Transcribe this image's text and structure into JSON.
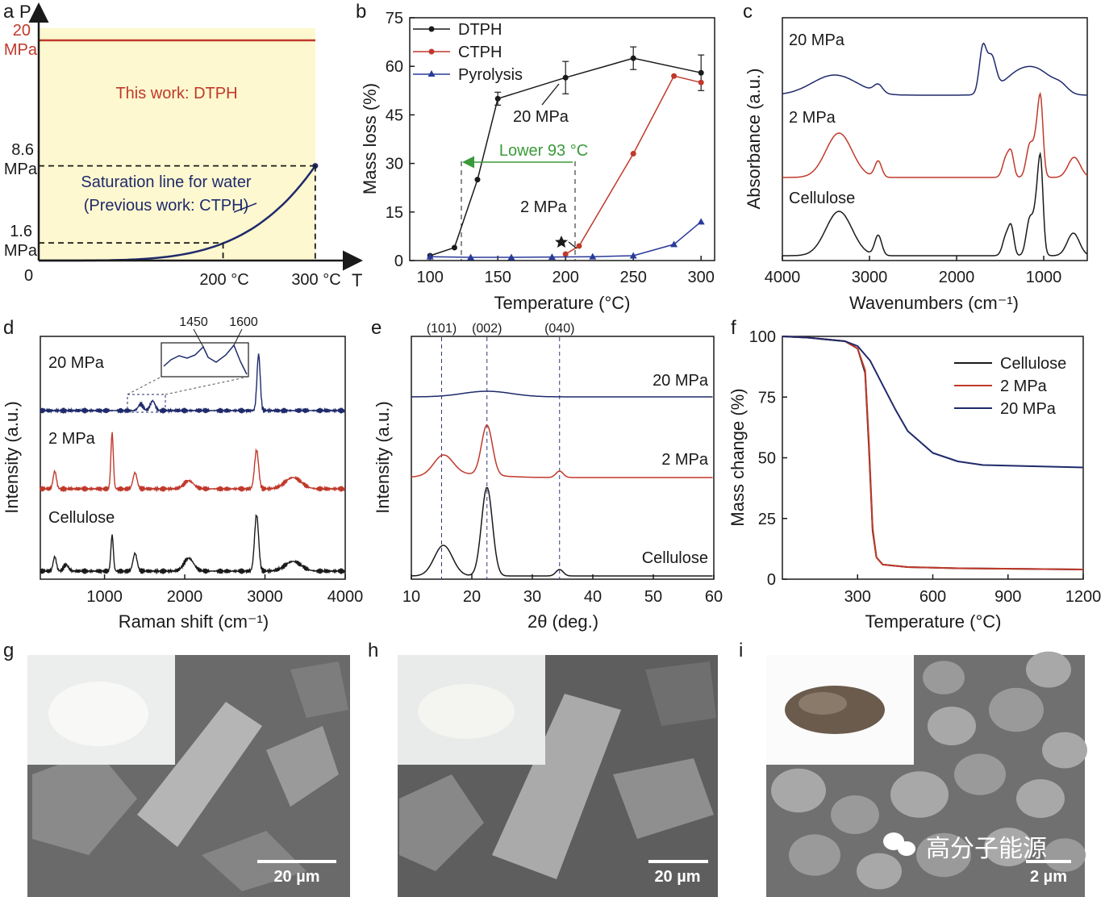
{
  "colors": {
    "black": "#1a1a1a",
    "red": "#c0392b",
    "navy": "#1f2a6b",
    "blue": "#2a3a9a",
    "green": "#3a9a3a",
    "yellow_fill": "#fdf8cf",
    "red_label": "#c0392b"
  },
  "chart_data": [
    {
      "panel": "a",
      "type": "line",
      "xlabel": "T",
      "ylabel": "P",
      "origin_label": "0",
      "x_ticks": [
        "200 °C",
        "300 °C"
      ],
      "y_ticks": [
        {
          "value": "20",
          "unit": "MPa"
        },
        {
          "value": "8.6",
          "unit": "MPa"
        },
        {
          "value": "1.6",
          "unit": "MPa"
        }
      ],
      "region_label": "This work: DTPH",
      "curve_label_line1": "Saturation line for water",
      "curve_label_line2": "(Previous work: CTPH)",
      "x_range_c": [
        0,
        350
      ],
      "y_range_mpa": [
        0,
        23
      ],
      "dtph_pressure": 20,
      "saturation_curve": {
        "x": [
          0,
          100,
          150,
          200,
          250,
          300
        ],
        "y": [
          0,
          0.1,
          0.48,
          1.6,
          4.0,
          8.6
        ]
      }
    },
    {
      "panel": "b",
      "type": "line",
      "xlabel": "Temperature (°C)",
      "ylabel": "Mass loss (%)",
      "xlim": [
        85,
        310
      ],
      "ylim": [
        0,
        75
      ],
      "x_ticks": [
        100,
        150,
        200,
        250,
        300
      ],
      "y_ticks": [
        0,
        15,
        30,
        45,
        60,
        75
      ],
      "legend": "top-left",
      "series": [
        {
          "name": "DTPH",
          "color": "#1a1a1a",
          "marker": "circle",
          "x": [
            100,
            118,
            135,
            150,
            200,
            250,
            300
          ],
          "y": [
            1.5,
            4,
            25,
            50,
            56.5,
            62.5,
            58
          ],
          "error": [
            0,
            0,
            0,
            2,
            5,
            3.5,
            5.5
          ]
        },
        {
          "name": "CTPH",
          "color": "#c0392b",
          "marker": "circle",
          "x": [
            200,
            210,
            250,
            280,
            300
          ],
          "y": [
            2,
            4.5,
            33,
            57,
            55
          ]
        },
        {
          "name": "Pyrolysis",
          "color": "#2a3a9a",
          "marker": "triangle",
          "x": [
            100,
            130,
            160,
            190,
            220,
            250,
            280,
            300
          ],
          "y": [
            1.2,
            1,
            1,
            1.1,
            1.2,
            1.5,
            5,
            12
          ]
        }
      ],
      "annotations": {
        "high": "20 MPa",
        "low": "2 MPa",
        "lower": "Lower 93 °C"
      }
    },
    {
      "panel": "c",
      "type": "line",
      "xlabel": "Wavenumbers (cm⁻¹)",
      "ylabel": "Absorbance (a.u.)",
      "xlim": [
        4000,
        500
      ],
      "x_ticks": [
        4000,
        3000,
        2000,
        1000
      ],
      "series": [
        {
          "name": "20 MPa",
          "color": "#1f2a6b"
        },
        {
          "name": "2 MPa",
          "color": "#c0392b"
        },
        {
          "name": "Cellulose",
          "color": "#1a1a1a"
        }
      ]
    },
    {
      "panel": "d",
      "type": "line",
      "xlabel": "Raman shift (cm⁻¹)",
      "ylabel": "Intensity (a.u.)",
      "xlim": [
        200,
        4000
      ],
      "x_ticks": [
        1000,
        2000,
        3000,
        4000
      ],
      "inset_peaks": [
        "1450",
        "1600"
      ],
      "series": [
        {
          "name": "20 MPa",
          "color": "#1f2a6b"
        },
        {
          "name": "2 MPa",
          "color": "#c0392b"
        },
        {
          "name": "Cellulose",
          "color": "#1a1a1a"
        }
      ]
    },
    {
      "panel": "e",
      "type": "line",
      "xlabel": "2θ (deg.)",
      "ylabel": "Intensity (a.u.)",
      "xlim": [
        10,
        60
      ],
      "x_ticks": [
        10,
        20,
        30,
        40,
        50,
        60
      ],
      "reflections": [
        {
          "label": "(101)",
          "x": 15
        },
        {
          "label": "(002)",
          "x": 22.5
        },
        {
          "label": "(040)",
          "x": 34.5
        }
      ],
      "series": [
        {
          "name": "20 MPa",
          "color": "#1f2a6b"
        },
        {
          "name": "2 MPa",
          "color": "#c0392b"
        },
        {
          "name": "Cellulose",
          "color": "#1a1a1a"
        }
      ]
    },
    {
      "panel": "f",
      "type": "line",
      "xlabel": "Temperature (°C)",
      "ylabel": "Mass change (%)",
      "xlim": [
        0,
        1200
      ],
      "ylim": [
        0,
        100
      ],
      "x_ticks": [
        300,
        600,
        900,
        1200
      ],
      "y_ticks": [
        0,
        25,
        50,
        75,
        100
      ],
      "legend": "top-right",
      "series": [
        {
          "name": "Cellulose",
          "color": "#1a1a1a",
          "x": [
            0,
            100,
            250,
            300,
            330,
            345,
            360,
            375,
            400,
            500,
            700,
            1200
          ],
          "y": [
            100,
            99.5,
            98,
            95,
            85,
            55,
            20,
            9,
            6,
            5,
            4.5,
            4
          ]
        },
        {
          "name": "2 MPa",
          "color": "#c0392b",
          "x": [
            0,
            100,
            250,
            300,
            330,
            345,
            360,
            375,
            400,
            500,
            700,
            1200
          ],
          "y": [
            100,
            99.5,
            98,
            95,
            86,
            57,
            21,
            9,
            6,
            5,
            4.5,
            4
          ]
        },
        {
          "name": "20 MPa",
          "color": "#1f2a6b",
          "x": [
            0,
            100,
            250,
            300,
            350,
            400,
            450,
            500,
            600,
            700,
            800,
            1000,
            1200
          ],
          "y": [
            100,
            99.5,
            98,
            96,
            90,
            80,
            70,
            61,
            52,
            48.5,
            47,
            46.5,
            46
          ]
        }
      ]
    }
  ],
  "panel_letters": [
    "a",
    "b",
    "c",
    "d",
    "e",
    "f",
    "g",
    "h",
    "i"
  ],
  "micrographs": [
    {
      "panel": "g",
      "scale_bar": "20 µm"
    },
    {
      "panel": "h",
      "scale_bar": "20 µm"
    },
    {
      "panel": "i",
      "scale_bar": "2 µm"
    }
  ],
  "watermark": "高分子能源"
}
